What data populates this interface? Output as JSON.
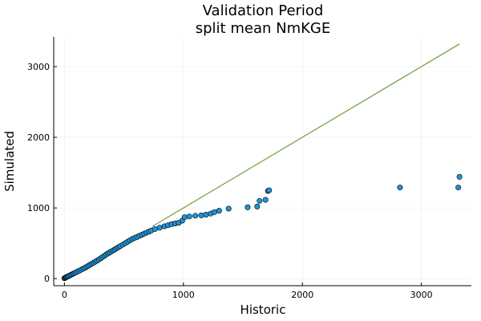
{
  "chart_data": {
    "type": "scatter",
    "title": "Validation Period",
    "subtitle": "split mean NmKGE",
    "xlabel": "Historic",
    "ylabel": "Simulated",
    "xlim": [
      -90,
      3420
    ],
    "ylim": [
      -100,
      3420
    ],
    "xticks": [
      0,
      1000,
      2000,
      3000
    ],
    "yticks": [
      0,
      1000,
      2000,
      3000
    ],
    "xtick_labels": [
      "0",
      "1000",
      "2000",
      "3000"
    ],
    "ytick_labels": [
      "0",
      "1000",
      "2000",
      "3000"
    ],
    "grid": true,
    "legend": "none",
    "colors": {
      "points": "#1f94d9",
      "point_edge": "#000000",
      "reference_line": "#6e9e3a"
    },
    "reference_line": {
      "x": [
        740,
        3320
      ],
      "y": [
        740,
        3320
      ]
    },
    "points": {
      "x": [
        0,
        5,
        10,
        15,
        20,
        28,
        35,
        45,
        55,
        65,
        75,
        85,
        95,
        110,
        125,
        140,
        155,
        170,
        185,
        200,
        215,
        230,
        245,
        260,
        275,
        290,
        305,
        320,
        335,
        350,
        365,
        380,
        395,
        410,
        425,
        440,
        455,
        470,
        490,
        510,
        530,
        550,
        570,
        590,
        610,
        630,
        650,
        670,
        690,
        710,
        730,
        760,
        800,
        840,
        870,
        900,
        930,
        960,
        990,
        1010,
        1050,
        1100,
        1150,
        1190,
        1230,
        1260,
        1300,
        1380,
        1540,
        1620,
        1640,
        1690,
        1710,
        1720,
        2820,
        3310,
        3320
      ],
      "y": [
        5,
        10,
        15,
        20,
        25,
        30,
        38,
        45,
        55,
        62,
        70,
        78,
        88,
        100,
        112,
        125,
        138,
        150,
        165,
        180,
        195,
        210,
        225,
        240,
        255,
        270,
        288,
        305,
        322,
        340,
        355,
        370,
        385,
        400,
        415,
        430,
        445,
        460,
        480,
        500,
        520,
        540,
        560,
        575,
        590,
        605,
        620,
        635,
        650,
        665,
        680,
        700,
        720,
        740,
        755,
        770,
        780,
        790,
        820,
        870,
        880,
        890,
        895,
        905,
        920,
        940,
        960,
        990,
        1010,
        1020,
        1100,
        1115,
        1240,
        1250,
        1290,
        1290,
        1440
      ]
    }
  }
}
